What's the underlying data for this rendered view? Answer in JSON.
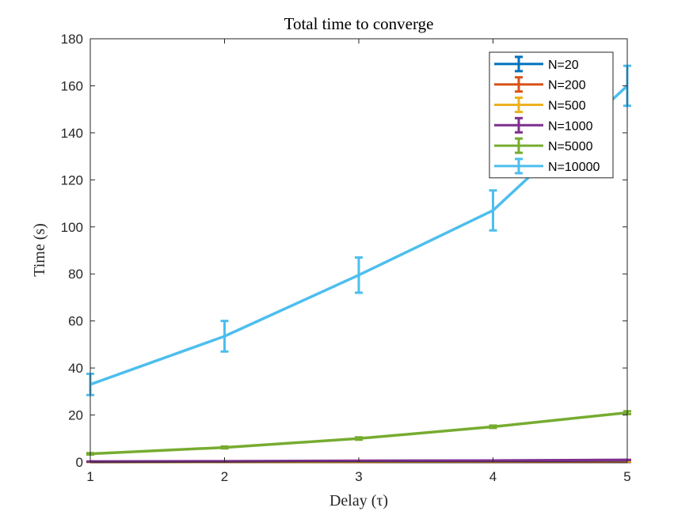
{
  "chart_data": {
    "type": "line",
    "title": "Total time to converge",
    "xlabel": "Delay (τ)",
    "ylabel": "Time (s)",
    "xlim": [
      1,
      5
    ],
    "ylim": [
      0,
      180
    ],
    "xticks": [
      1,
      2,
      3,
      4,
      5
    ],
    "yticks": [
      0,
      20,
      40,
      60,
      80,
      100,
      120,
      140,
      160,
      180
    ],
    "legend_position": "top-right",
    "grid": false,
    "x": [
      1,
      2,
      3,
      4,
      5
    ],
    "series": [
      {
        "name": "N=20",
        "color": "#0072BD",
        "values": [
          0.02,
          0.03,
          0.04,
          0.05,
          0.06
        ],
        "errors": [
          0,
          0,
          0,
          0,
          0
        ]
      },
      {
        "name": "N=200",
        "color": "#D95319",
        "values": [
          0.05,
          0.07,
          0.1,
          0.12,
          0.15
        ],
        "errors": [
          0,
          0,
          0,
          0,
          0
        ]
      },
      {
        "name": "N=500",
        "color": "#EDB120",
        "values": [
          0.1,
          0.15,
          0.2,
          0.3,
          0.4
        ],
        "errors": [
          0,
          0,
          0,
          0,
          0
        ]
      },
      {
        "name": "N=1000",
        "color": "#7E2F8E",
        "values": [
          0.2,
          0.3,
          0.5,
          0.6,
          0.9
        ],
        "errors": [
          0,
          0,
          0,
          0,
          0
        ]
      },
      {
        "name": "N=5000",
        "color": "#77AC30",
        "values": [
          3.5,
          6.2,
          10,
          15,
          21
        ],
        "errors": [
          0.3,
          0.4,
          0.5,
          0.5,
          0.6
        ]
      },
      {
        "name": "N=10000",
        "color": "#4DBEEE",
        "values": [
          33,
          53.5,
          79.5,
          107,
          160
        ],
        "errors": [
          4.5,
          6.5,
          7.5,
          8.5,
          8.5
        ]
      }
    ]
  }
}
